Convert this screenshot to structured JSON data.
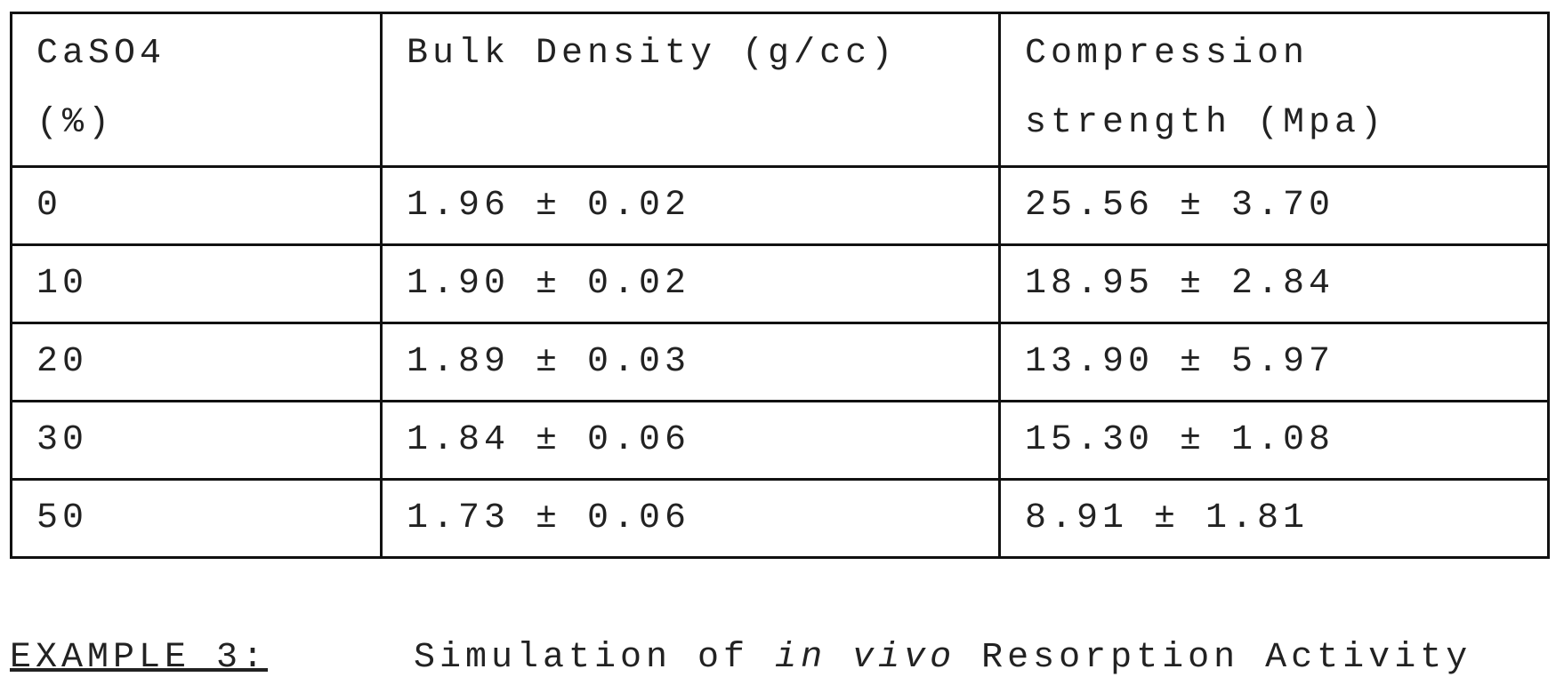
{
  "table": {
    "header": [
      "CaSO4\n(%)",
      "Bulk Density (g/cc)",
      "Compression\nstrength (Mpa)"
    ],
    "rows": [
      [
        "0",
        "1.96 ± 0.02",
        "25.56 ± 3.70"
      ],
      [
        "10",
        "1.90 ± 0.02",
        "18.95 ± 2.84"
      ],
      [
        "20",
        "1.89 ± 0.03",
        "13.90 ± 5.97"
      ],
      [
        "30",
        "1.84 ± 0.06",
        "15.30 ± 1.08"
      ],
      [
        "50",
        "1.73 ± 0.06",
        "8.91 ± 1.81"
      ]
    ]
  },
  "caption": {
    "label": "EXAMPLE 3:",
    "title": [
      "Simulation of",
      "in vivo",
      "Resorption Activity"
    ]
  }
}
